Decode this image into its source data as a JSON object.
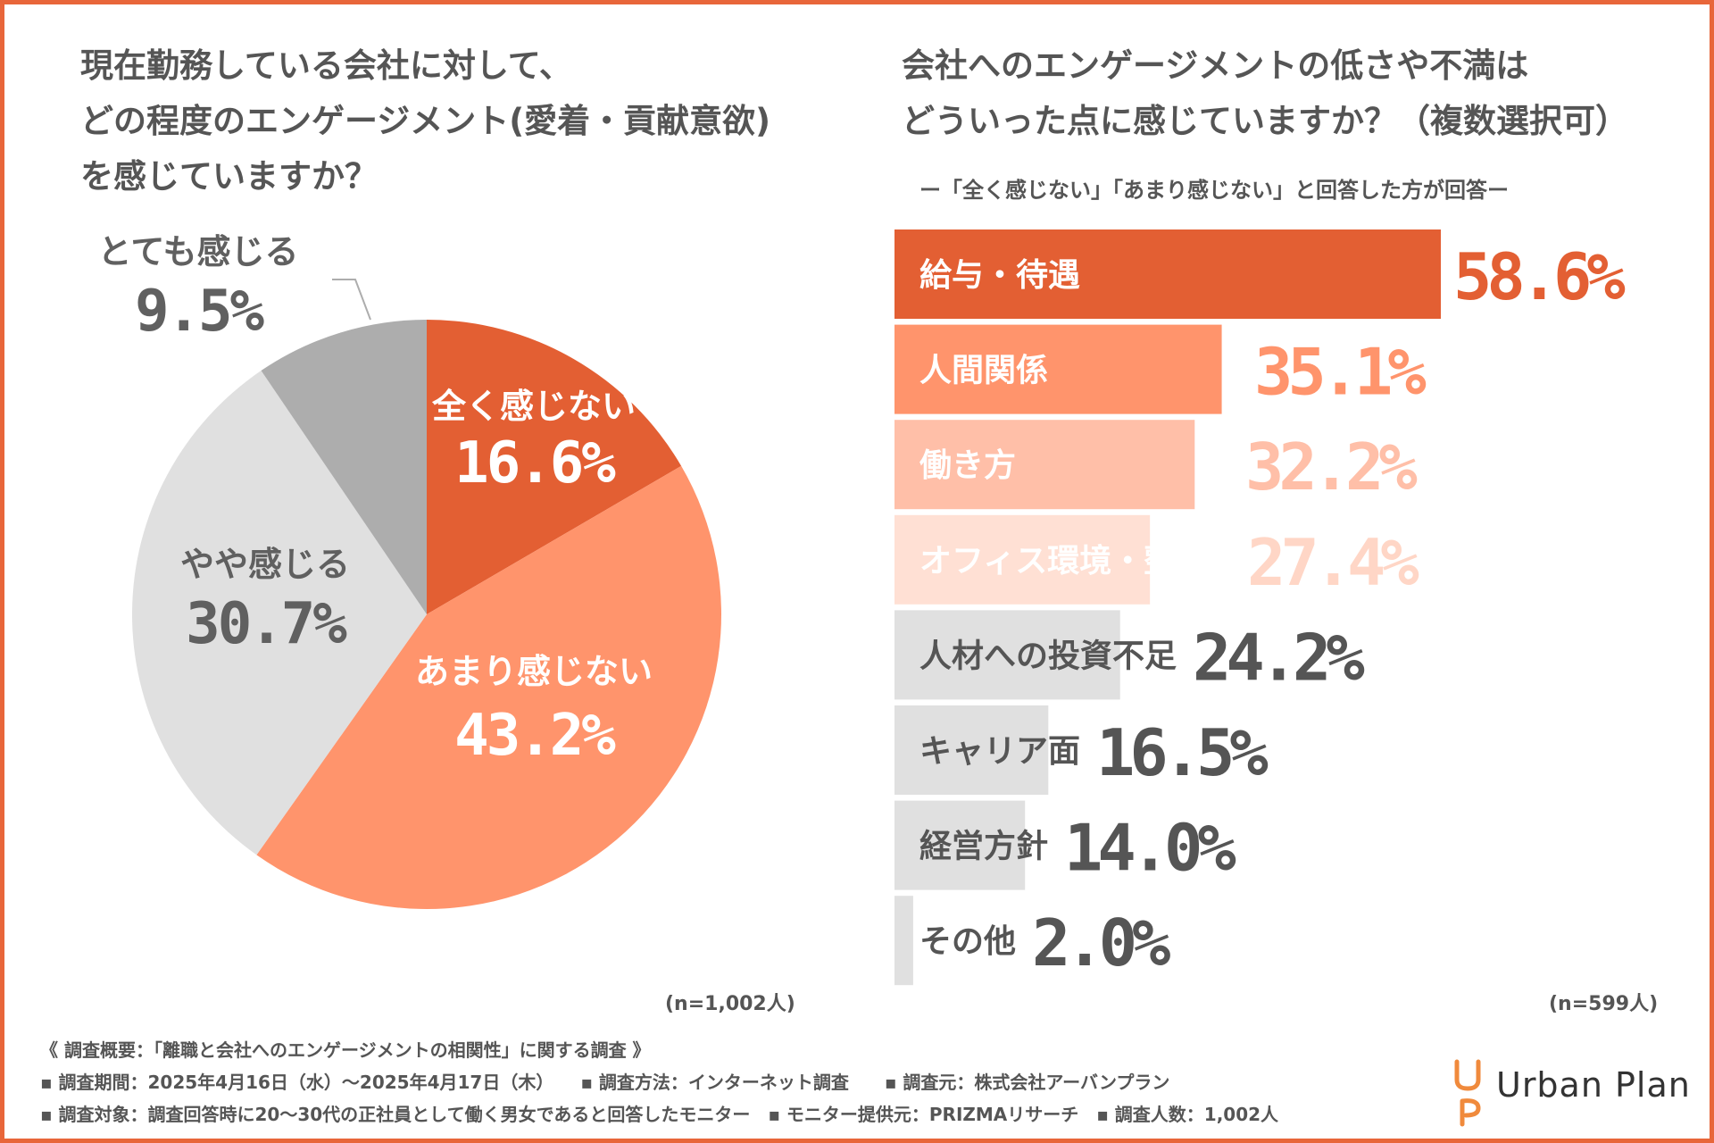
{
  "left_title": [
    "現在勤務している会社に対して、",
    "どの程度のエンゲージメント(愛着・貢献意欲)",
    "を感じていますか？"
  ],
  "right_title": [
    "会社へのエンゲージメントの低さや不満は",
    "どういった点に感じていますか？（複数選択可）"
  ],
  "right_subtitle": "ー「全く感じない」「あまり感じない」と回答した方が回答ー",
  "chart_data": [
    {
      "type": "pie",
      "title": "現在勤務している会社に対して、どの程度のエンゲージメント(愛着・貢献意欲)を感じていますか？",
      "slices": [
        {
          "label": "全く感じない",
          "value": 16.6,
          "value_label": "16.6%",
          "color": "#e35f33",
          "text_color": "#ffffff"
        },
        {
          "label": "あまり感じない",
          "value": 43.2,
          "value_label": "43.2%",
          "color": "#ff946c",
          "text_color": "#ffffff"
        },
        {
          "label": "やや感じる",
          "value": 30.7,
          "value_label": "30.7%",
          "color": "#e0e0e0",
          "text_color": "#606060"
        },
        {
          "label": "とても感じる",
          "value": 9.5,
          "value_label": "9.5%",
          "color": "#adadad",
          "text_color": "#606060"
        }
      ],
      "note": "(n=1,002人)"
    },
    {
      "type": "bar",
      "orientation": "horizontal",
      "title": "会社へのエンゲージメントの低さや不満はどういった点に感じていますか？（複数選択可）",
      "categories": [
        "給与・待遇",
        "人間関係",
        "働き方",
        "オフィス環境・整備",
        "人材への投資不足",
        "キャリア面",
        "経営方針",
        "その他"
      ],
      "values": [
        58.6,
        35.1,
        32.2,
        27.4,
        24.2,
        16.5,
        14.0,
        2.0
      ],
      "value_labels": [
        "58.6%",
        "35.1%",
        "32.2%",
        "27.4%",
        "24.2%",
        "16.5%",
        "14.0%",
        "2.0%"
      ],
      "bar_colors": [
        "#e35f33",
        "#ff946c",
        "#ffbfa8",
        "#ffe0d4",
        "#e0e0e0",
        "#e0e0e0",
        "#e0e0e0",
        "#e0e0e0"
      ],
      "label_colors": [
        "#ffffff",
        "#ffffff",
        "#ffffff",
        "#ffffff",
        "#555555",
        "#555555",
        "#555555",
        "#555555"
      ],
      "value_colors": [
        "#e35f33",
        "#ff946c",
        "#ffbfa8",
        "#ffd6c6",
        "#555555",
        "#555555",
        "#555555",
        "#555555"
      ],
      "xlim": [
        0,
        58.6
      ],
      "note": "(n=599人)"
    }
  ],
  "footer": {
    "heading": "《 調査概要：「離職と会社へのエンゲージメントの相関性」に関する調査 》",
    "line1": "▪ 調査期間：2025年4月16日（水）～2025年4月17日（木）　　▪ 調査方法：インターネット調査　　▪ 調査元：株式会社アーバンプラン",
    "line2": "▪ 調査対象：調査回答時に20～30代の正社員として働く男女であると回答したモニター　▪ モニター提供元：PRIZMAリサーチ　▪ 調査人数：1,002人"
  },
  "logo": {
    "text": "Urban Plan",
    "color": "#f08a3c"
  },
  "colors": {
    "frame": "#e8663a",
    "text": "#555555"
  }
}
